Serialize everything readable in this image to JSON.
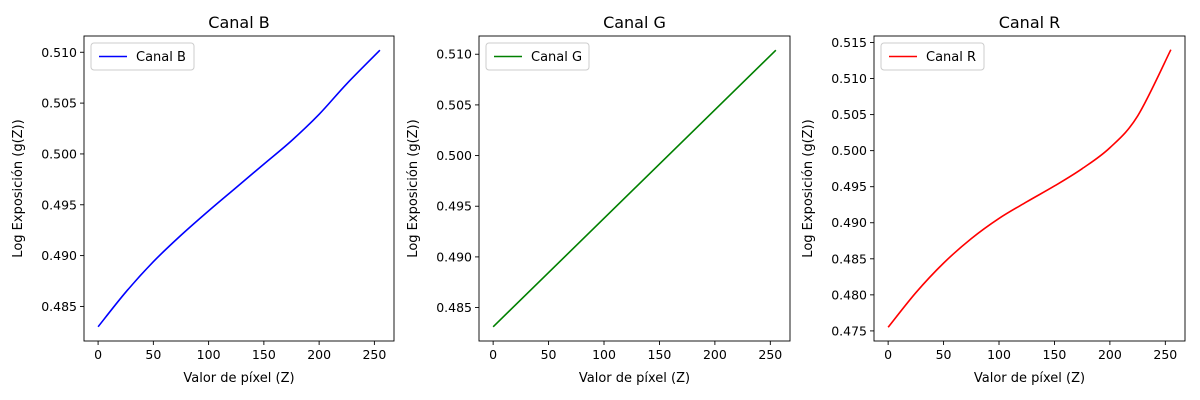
{
  "chart_data": [
    {
      "type": "line",
      "title": "Canal B",
      "xlabel": "Valor de píxel (Z)",
      "ylabel": "Log Exposición (g(Z))",
      "xlim": [
        -12.75,
        267.75
      ],
      "ylim": [
        0.4816,
        0.5116
      ],
      "xticks": [
        0,
        50,
        100,
        150,
        200,
        250
      ],
      "yticks": [
        0.485,
        0.49,
        0.495,
        0.5,
        0.505,
        0.51
      ],
      "ytick_labels": [
        "0.485",
        "0.490",
        "0.495",
        "0.500",
        "0.505",
        "0.510"
      ],
      "legend": "upper-left",
      "series": [
        {
          "name": "Canal B",
          "color": "#0000ff",
          "x": [
            0,
            25,
            50,
            75,
            100,
            125,
            150,
            175,
            200,
            225,
            255
          ],
          "y": [
            0.483,
            0.4864,
            0.4894,
            0.492,
            0.4944,
            0.4967,
            0.499,
            0.5013,
            0.5039,
            0.5069,
            0.5102
          ]
        }
      ]
    },
    {
      "type": "line",
      "title": "Canal G",
      "xlabel": "Valor de píxel (Z)",
      "ylabel": "Log Exposición (g(Z))",
      "xlim": [
        -12.75,
        267.75
      ],
      "ylim": [
        0.4817,
        0.5118
      ],
      "xticks": [
        0,
        50,
        100,
        150,
        200,
        250
      ],
      "yticks": [
        0.485,
        0.49,
        0.495,
        0.5,
        0.505,
        0.51
      ],
      "ytick_labels": [
        "0.485",
        "0.490",
        "0.495",
        "0.500",
        "0.505",
        "0.510"
      ],
      "legend": "upper-left",
      "series": [
        {
          "name": "Canal G",
          "color": "#008000",
          "x": [
            0,
            255
          ],
          "y": [
            0.4831,
            0.5104
          ]
        }
      ]
    },
    {
      "type": "line",
      "title": "Canal R",
      "xlabel": "Valor de píxel (Z)",
      "ylabel": "Log Exposición (g(Z))",
      "xlim": [
        -12.75,
        267.75
      ],
      "ylim": [
        0.4736,
        0.5159
      ],
      "xticks": [
        0,
        50,
        100,
        150,
        200,
        250
      ],
      "yticks": [
        0.475,
        0.48,
        0.485,
        0.49,
        0.495,
        0.5,
        0.505,
        0.51,
        0.515
      ],
      "ytick_labels": [
        "0.475",
        "0.480",
        "0.485",
        "0.490",
        "0.495",
        "0.500",
        "0.505",
        "0.510",
        "0.515"
      ],
      "legend": "upper-left",
      "series": [
        {
          "name": "Canal R",
          "color": "#ff0000",
          "x": [
            0,
            25,
            50,
            75,
            100,
            125,
            150,
            175,
            200,
            225,
            255
          ],
          "y": [
            0.4755,
            0.4803,
            0.4844,
            0.4878,
            0.4906,
            0.4929,
            0.4951,
            0.4975,
            0.5004,
            0.5048,
            0.514
          ]
        }
      ]
    }
  ]
}
